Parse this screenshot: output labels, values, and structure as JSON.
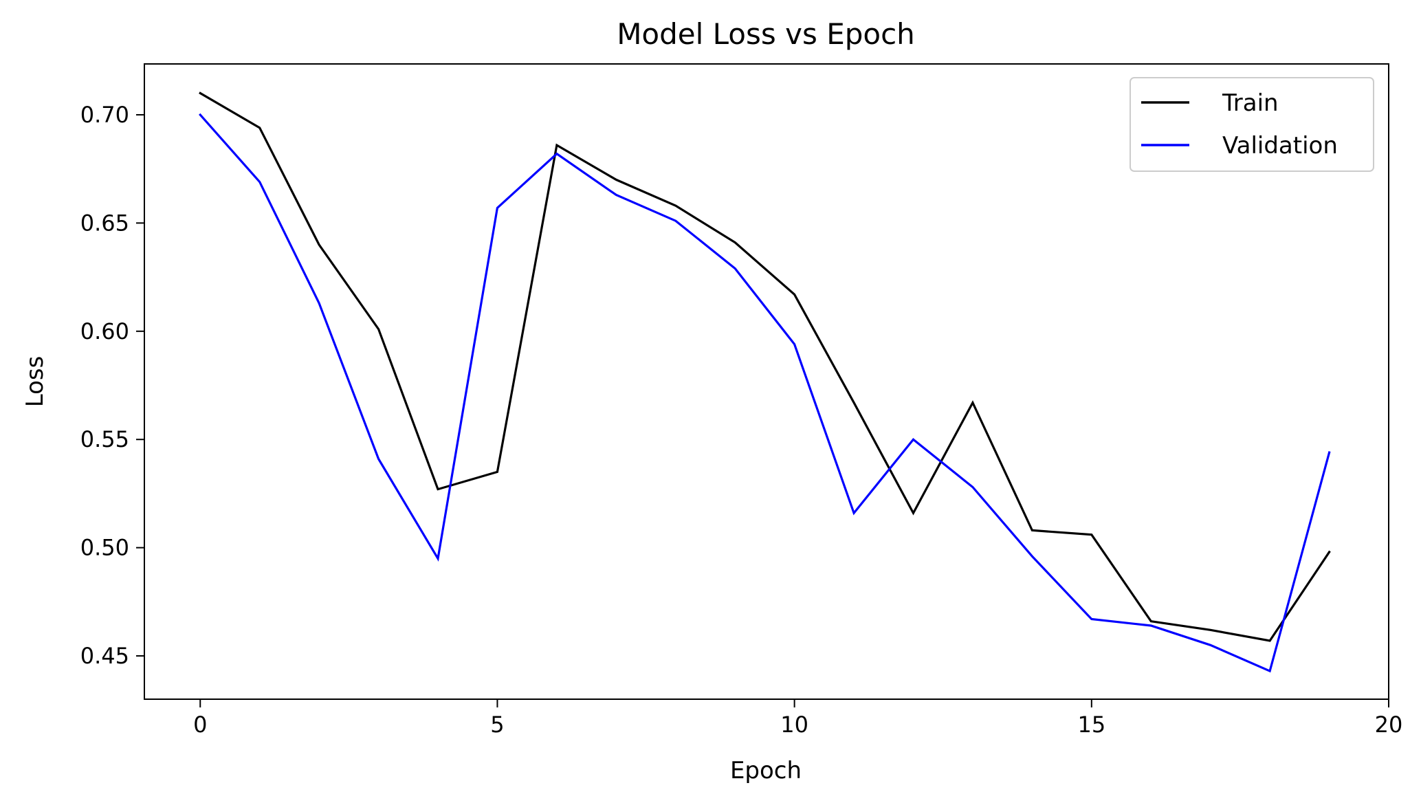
{
  "chart_data": {
    "type": "line",
    "title": "Model Loss vs Epoch",
    "xlabel": "Epoch",
    "ylabel": "Loss",
    "xlim": [
      -0.94,
      20
    ],
    "ylim": [
      0.43,
      0.7235
    ],
    "xticks": [
      0,
      5,
      10,
      15,
      20
    ],
    "yticks": [
      0.45,
      0.5,
      0.55,
      0.6,
      0.65,
      0.7
    ],
    "xtick_labels": [
      "0",
      "5",
      "10",
      "15",
      "20"
    ],
    "ytick_labels": [
      "0.45",
      "0.50",
      "0.55",
      "0.60",
      "0.65",
      "0.70"
    ],
    "legend_position": "top-right",
    "x": [
      0,
      1,
      2,
      3,
      4,
      5,
      6,
      7,
      8,
      9,
      10,
      11,
      12,
      13,
      14,
      15,
      16,
      17,
      18,
      19
    ],
    "series": [
      {
        "name": "Train",
        "color": "#000000",
        "values": [
          0.71,
          0.694,
          0.64,
          0.601,
          0.527,
          0.535,
          0.686,
          0.67,
          0.658,
          0.641,
          0.617,
          0.567,
          0.516,
          0.567,
          0.508,
          0.506,
          0.466,
          0.462,
          0.457,
          0.498
        ]
      },
      {
        "name": "Validation",
        "color": "#0000ff",
        "values": [
          0.7,
          0.669,
          0.613,
          0.541,
          0.495,
          0.657,
          0.682,
          0.663,
          0.651,
          0.629,
          0.594,
          0.516,
          0.55,
          0.528,
          0.496,
          0.467,
          0.464,
          0.455,
          0.443,
          0.544
        ]
      }
    ]
  }
}
